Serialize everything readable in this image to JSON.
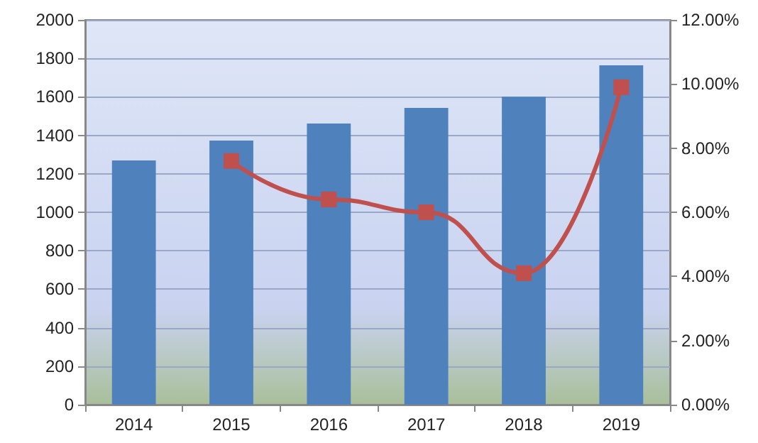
{
  "chart_data": {
    "type": "bar",
    "categories": [
      "2014",
      "2015",
      "2016",
      "2017",
      "2018",
      "2019"
    ],
    "series": [
      {
        "color": "#4f81bd",
        "values": [
          1269,
          1373,
          1461,
          1542,
          1601,
          1764
        ]
      },
      {
        "type": "line",
        "axis": "y2",
        "color": "#c0504d",
        "marker": "square",
        "values": [
          null,
          7.6,
          6.4,
          6.0,
          4.1,
          9.9
        ]
      }
    ],
    "ylim": [
      0,
      2000
    ],
    "yticks": [
      0,
      200,
      400,
      600,
      800,
      1000,
      1200,
      1400,
      1600,
      1800,
      2000
    ],
    "y2lim": [
      0,
      12
    ],
    "y2ticks": [
      {
        "value": 0,
        "label": "0.00%"
      },
      {
        "value": 2,
        "label": "2.00%"
      },
      {
        "value": 4,
        "label": "4.00%"
      },
      {
        "value": 6,
        "label": "6.00%"
      },
      {
        "value": 8,
        "label": "8.00%"
      },
      {
        "value": 10,
        "label": "10.00%"
      },
      {
        "value": 12,
        "label": "12.00%"
      }
    ],
    "grid": "y"
  }
}
